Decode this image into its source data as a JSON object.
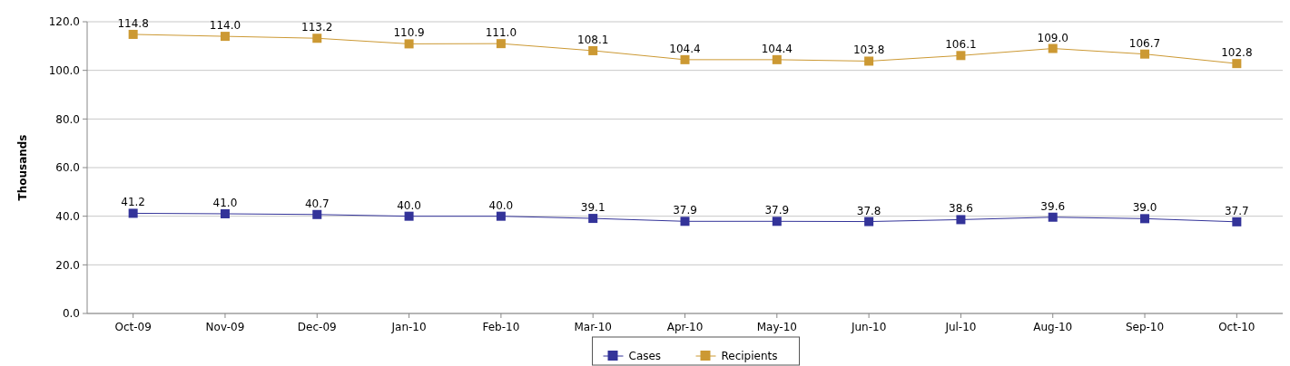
{
  "chart_data": {
    "type": "line",
    "ylabel": "Thousands",
    "categories": [
      "Oct-09",
      "Nov-09",
      "Dec-09",
      "Jan-10",
      "Feb-10",
      "Mar-10",
      "Apr-10",
      "May-10",
      "Jun-10",
      "Jul-10",
      "Aug-10",
      "Sep-10",
      "Oct-10"
    ],
    "series": [
      {
        "name": "Cases",
        "color": "#333399",
        "values": [
          41.2,
          41.0,
          40.7,
          40.0,
          40.0,
          39.1,
          37.9,
          37.9,
          37.8,
          38.6,
          39.6,
          39.0,
          37.7
        ],
        "value_labels": [
          "41.2",
          "41.0",
          "40.7",
          "40.0",
          "40.0",
          "39.1",
          "37.9",
          "37.9",
          "37.8",
          "38.6",
          "39.6",
          "39.0",
          "37.7"
        ]
      },
      {
        "name": "Recipients",
        "color": "#cc9933",
        "values": [
          114.8,
          114.0,
          113.2,
          110.9,
          111.0,
          108.1,
          104.4,
          104.4,
          103.8,
          106.1,
          109.0,
          106.7,
          102.8
        ],
        "value_labels": [
          "114.8",
          "114.0",
          "113.2",
          "110.9",
          "111.0",
          "108.1",
          "104.4",
          "104.4",
          "103.8",
          "106.1",
          "109.0",
          "106.7",
          "102.8"
        ]
      }
    ],
    "ylim": [
      0,
      120
    ],
    "yticks": [
      {
        "value": 0,
        "label": "0.0"
      },
      {
        "value": 20,
        "label": "20.0"
      },
      {
        "value": 40,
        "label": "40.0"
      },
      {
        "value": 60,
        "label": "60.0"
      },
      {
        "value": 80,
        "label": "80.0"
      },
      {
        "value": 100,
        "label": "100.0"
      },
      {
        "value": 120,
        "label": "120.0"
      }
    ],
    "grid": "y",
    "legend": "bottom",
    "marker": "square",
    "line_style": "solid"
  }
}
